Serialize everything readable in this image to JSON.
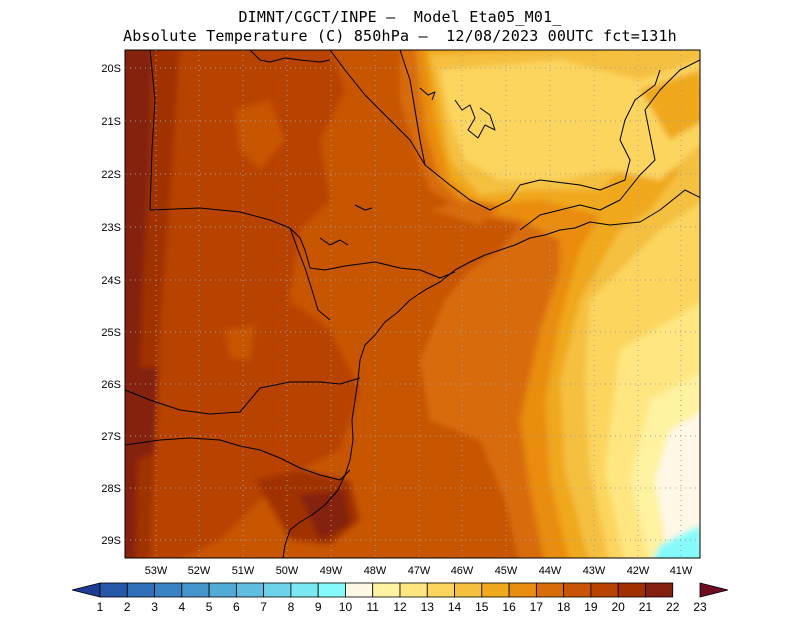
{
  "title": {
    "line1": "DIMNT/CGCT/INPE —  Model Eta05_M01_",
    "line2": "Absolute Temperature (C) 850hPa —  12/08/2023 00UTC fct=131h"
  },
  "map": {
    "lat_ticks": [
      "20S",
      "21S",
      "22S",
      "23S",
      "24S",
      "25S",
      "26S",
      "27S",
      "28S",
      "29S"
    ],
    "lon_ticks": [
      "53W",
      "52W",
      "51W",
      "50W",
      "49W",
      "48W",
      "47W",
      "46W",
      "45W",
      "44W",
      "43W",
      "42W",
      "41W"
    ],
    "lat_range": [
      -29.4,
      -19.8
    ],
    "lon_range": [
      -53.7,
      -40.7
    ],
    "grid": true
  },
  "colorbar": {
    "labels": [
      "1",
      "2",
      "3",
      "4",
      "5",
      "6",
      "7",
      "8",
      "9",
      "10",
      "11",
      "12",
      "13",
      "14",
      "15",
      "16",
      "17",
      "18",
      "19",
      "20",
      "21",
      "22",
      "23"
    ],
    "colors": [
      "#1e3c94",
      "#2658a8",
      "#2f6fb8",
      "#3a82c4",
      "#4696cc",
      "#52aad6",
      "#5fbee0",
      "#6dd2ea",
      "#7ae8f2",
      "#86fafa",
      "#fff8e6",
      "#fff2a0",
      "#ffe680",
      "#fcd55e",
      "#f5c040",
      "#f0a81e",
      "#ea8c10",
      "#d86c08",
      "#c85404",
      "#b84202",
      "#a03002",
      "#842010",
      "#6e0c20"
    ]
  }
}
